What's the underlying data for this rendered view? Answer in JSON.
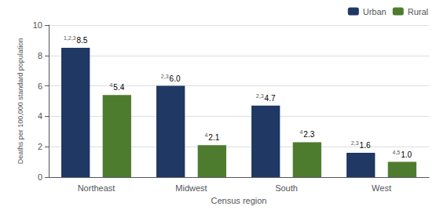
{
  "chart_data": {
    "type": "bar",
    "xlabel": "Census region",
    "ylabel": "Deaths per 100,000 standard population",
    "categories": [
      "Northeast",
      "Midwest",
      "South",
      "West"
    ],
    "series": [
      {
        "name": "Urban",
        "color": "#1f3864",
        "values": [
          8.5,
          6.0,
          4.7,
          1.6
        ],
        "value_labels": [
          "8.5",
          "6.0",
          "4.7",
          "1.6"
        ],
        "superscripts": [
          "1,2,3",
          "2,3",
          "2,3",
          "2,3"
        ]
      },
      {
        "name": "Rural",
        "color": "#4e7c2f",
        "values": [
          5.4,
          2.1,
          2.3,
          1.0
        ],
        "value_labels": [
          "5.4",
          "2.1",
          "2.3",
          "1.0"
        ],
        "superscripts": [
          "4",
          "4",
          "4",
          "4,5"
        ]
      }
    ],
    "ylim": [
      0,
      10
    ],
    "yticks": [
      0,
      2,
      4,
      6,
      8,
      10
    ],
    "grid": true,
    "legend": "upper right",
    "data_labels": true
  }
}
